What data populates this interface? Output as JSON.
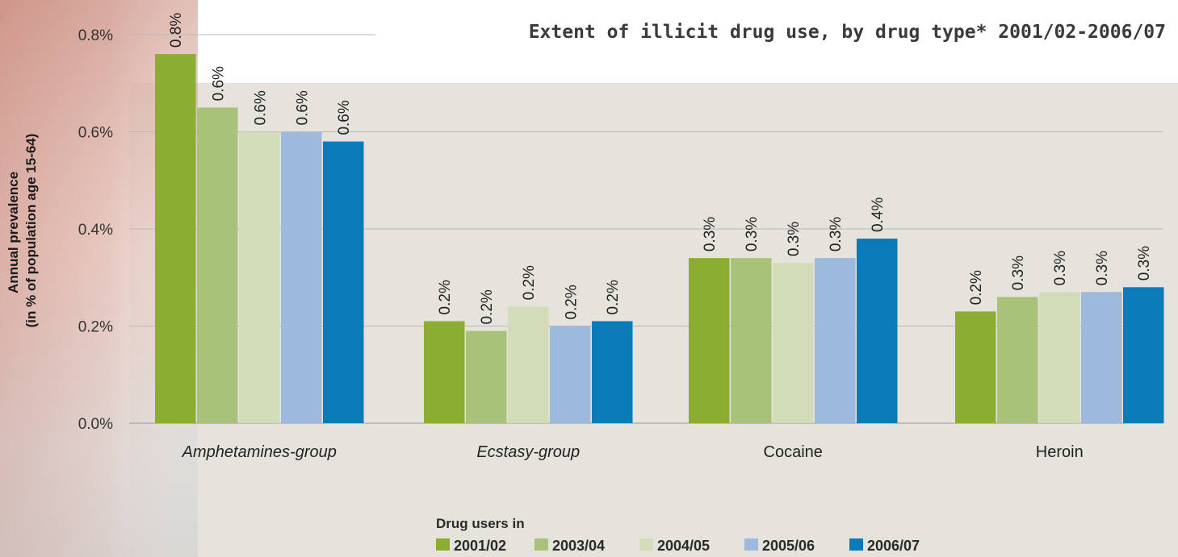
{
  "chart_data": {
    "type": "bar",
    "title": "Extent of illicit drug use, by drug type* 2001/02-2006/07",
    "ylabel_line1": "Annual prevalence",
    "ylabel_line2": "(in % of population age 15-64)",
    "xlabel": "",
    "ylim": [
      0,
      0.8
    ],
    "yticks": [
      "0.0%",
      "0.2%",
      "0.4%",
      "0.6%",
      "0.8%"
    ],
    "ytick_values": [
      0,
      0.2,
      0.4,
      0.6,
      0.8
    ],
    "categories": [
      "Amphetamines-group",
      "Ecstasy-group",
      "Cocaine",
      "Heroin"
    ],
    "italic_categories": [
      true,
      true,
      false,
      false
    ],
    "legend_title": "Drug users in",
    "legend_position": "bottom-center",
    "grid": true,
    "series": [
      {
        "name": "2001/02",
        "color": "#8aad32",
        "values": [
          0.76,
          0.21,
          0.34,
          0.23
        ],
        "labels": [
          "0.8%",
          "0.2%",
          "0.3%",
          "0.2%"
        ]
      },
      {
        "name": "2003/04",
        "color": "#a9c27a",
        "values": [
          0.65,
          0.19,
          0.34,
          0.26
        ],
        "labels": [
          "0.6%",
          "0.2%",
          "0.3%",
          "0.3%"
        ]
      },
      {
        "name": "2004/05",
        "color": "#d2dcb8",
        "values": [
          0.6,
          0.24,
          0.33,
          0.27
        ],
        "labels": [
          "0.6%",
          "0.2%",
          "0.3%",
          "0.3%"
        ]
      },
      {
        "name": "2005/06",
        "color": "#9db9dc",
        "values": [
          0.6,
          0.2,
          0.34,
          0.27
        ],
        "labels": [
          "0.6%",
          "0.2%",
          "0.3%",
          "0.3%"
        ]
      },
      {
        "name": "2006/07",
        "color": "#0a7bb8",
        "values": [
          0.58,
          0.21,
          0.38,
          0.28
        ],
        "labels": [
          "0.6%",
          "0.2%",
          "0.4%",
          "0.3%"
        ]
      }
    ]
  }
}
